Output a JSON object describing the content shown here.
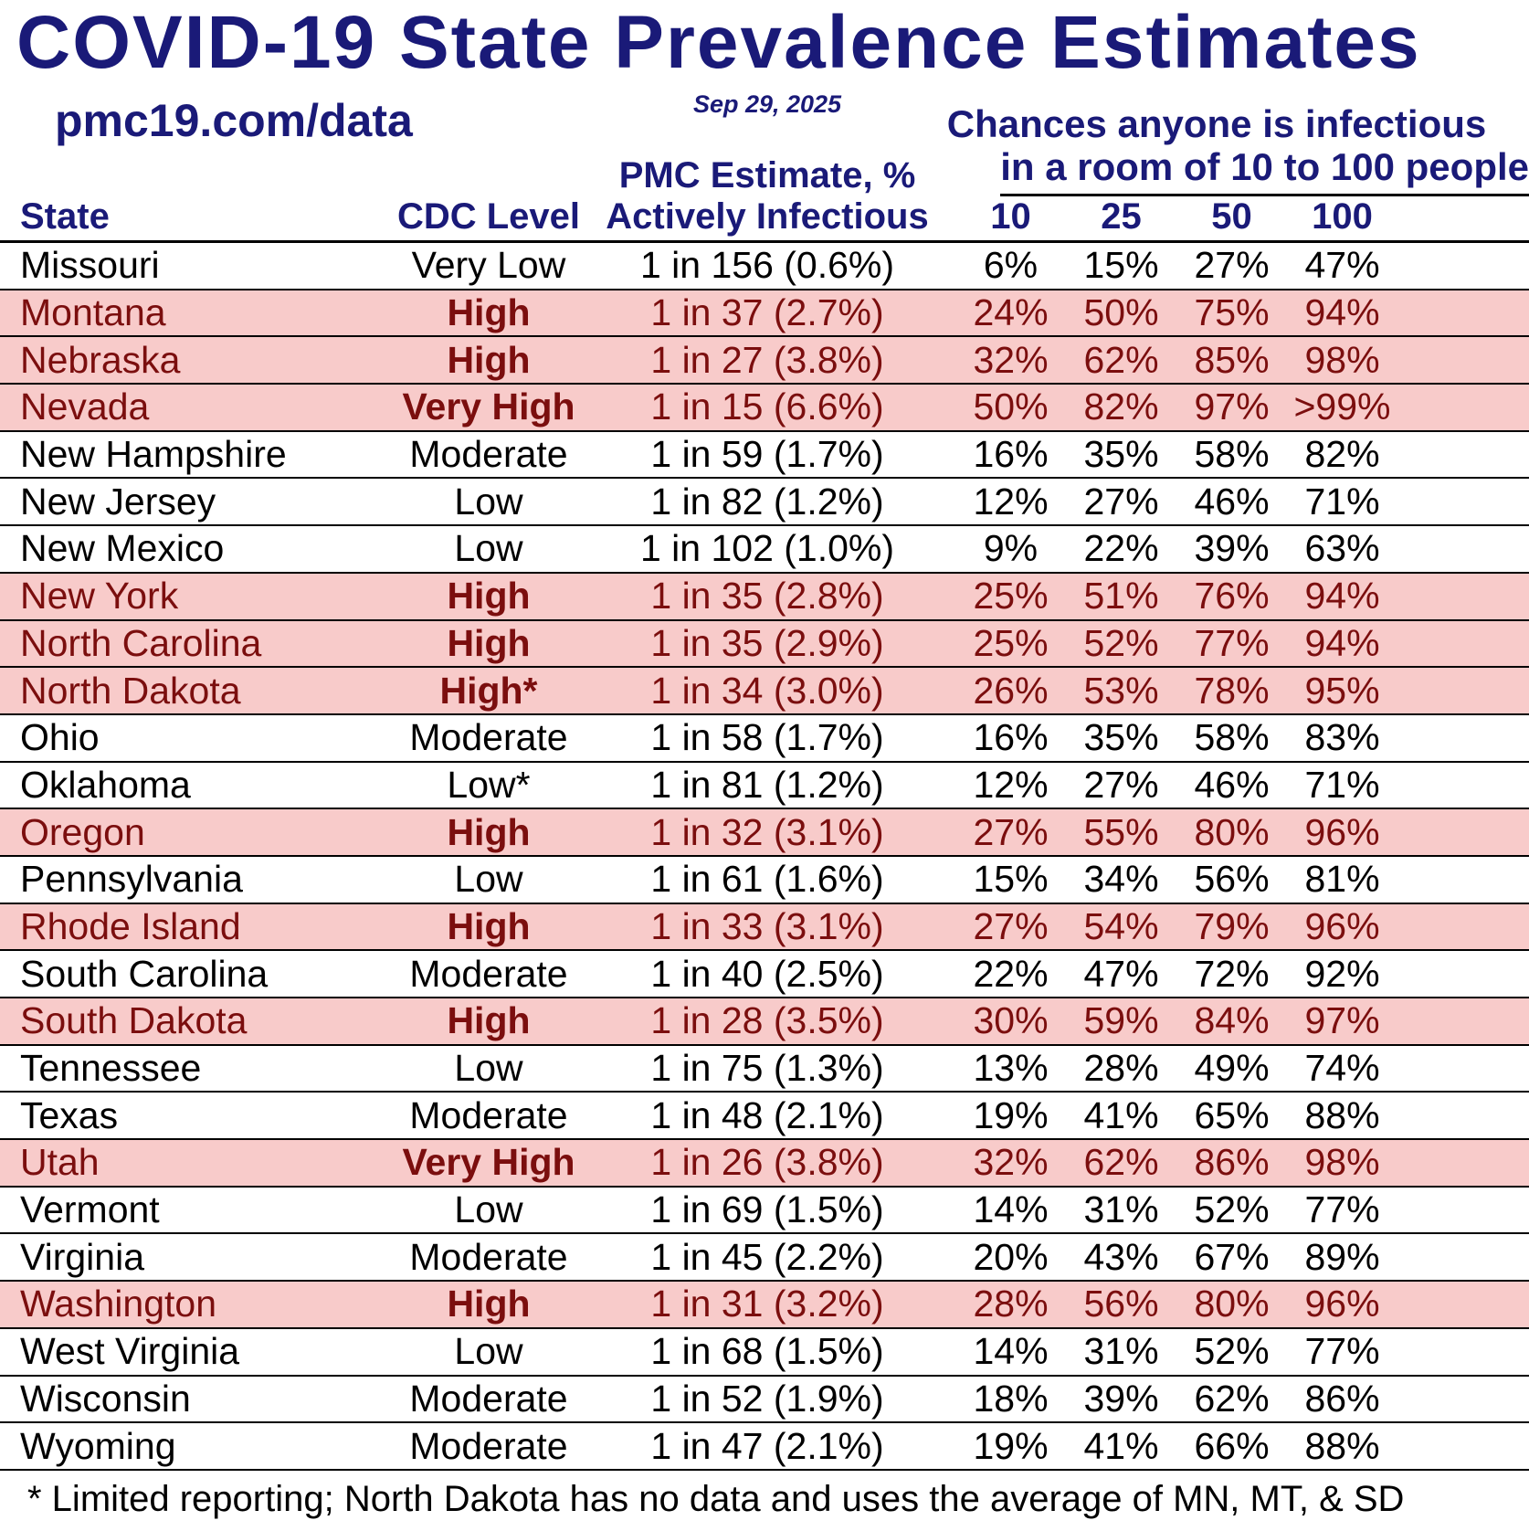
{
  "header": {
    "title": "COVID-19 State Prevalence Estimates",
    "site": "pmc19.com/data",
    "date": "Sep 29, 2025",
    "chances_line1": "Chances anyone is infectious",
    "chances_line2": "in a room of 10 to 100 people",
    "pmc_estimate_label": "PMC Estimate, %",
    "col_state": "State",
    "col_cdc_level": "CDC Level",
    "col_actively_infectious": "Actively Infectious",
    "room_sizes": [
      "10",
      "25",
      "50",
      "100"
    ]
  },
  "colors": {
    "navy": "#1a1a78",
    "dark_red": "#7b0e0e",
    "pink": "#f8cbca"
  },
  "chart_data": {
    "type": "table",
    "title": "COVID-19 State Prevalence Estimates",
    "group_header": "Chances anyone is infectious in a room of 10 to 100 people",
    "columns": [
      "State",
      "CDC Level",
      "PMC Estimate, % Actively Infectious",
      "10",
      "25",
      "50",
      "100"
    ],
    "rows": [
      {
        "state": "Missouri",
        "cdc_level": "Very Low",
        "estimate": "1 in 156 (0.6%)",
        "chances": [
          "6%",
          "15%",
          "27%",
          "47%"
        ],
        "highlight": false
      },
      {
        "state": "Montana",
        "cdc_level": "High",
        "estimate": "1 in 37 (2.7%)",
        "chances": [
          "24%",
          "50%",
          "75%",
          "94%"
        ],
        "highlight": true
      },
      {
        "state": "Nebraska",
        "cdc_level": "High",
        "estimate": "1 in 27 (3.8%)",
        "chances": [
          "32%",
          "62%",
          "85%",
          "98%"
        ],
        "highlight": true
      },
      {
        "state": "Nevada",
        "cdc_level": "Very High",
        "estimate": "1 in 15 (6.6%)",
        "chances": [
          "50%",
          "82%",
          "97%",
          ">99%"
        ],
        "highlight": true
      },
      {
        "state": "New Hampshire",
        "cdc_level": "Moderate",
        "estimate": "1 in 59 (1.7%)",
        "chances": [
          "16%",
          "35%",
          "58%",
          "82%"
        ],
        "highlight": false
      },
      {
        "state": "New Jersey",
        "cdc_level": "Low",
        "estimate": "1 in 82 (1.2%)",
        "chances": [
          "12%",
          "27%",
          "46%",
          "71%"
        ],
        "highlight": false
      },
      {
        "state": "New Mexico",
        "cdc_level": "Low",
        "estimate": "1 in 102 (1.0%)",
        "chances": [
          "9%",
          "22%",
          "39%",
          "63%"
        ],
        "highlight": false
      },
      {
        "state": "New York",
        "cdc_level": "High",
        "estimate": "1 in 35 (2.8%)",
        "chances": [
          "25%",
          "51%",
          "76%",
          "94%"
        ],
        "highlight": true
      },
      {
        "state": "North Carolina",
        "cdc_level": "High",
        "estimate": "1 in 35 (2.9%)",
        "chances": [
          "25%",
          "52%",
          "77%",
          "94%"
        ],
        "highlight": true
      },
      {
        "state": "North Dakota",
        "cdc_level": "High*",
        "estimate": "1 in 34 (3.0%)",
        "chances": [
          "26%",
          "53%",
          "78%",
          "95%"
        ],
        "highlight": true
      },
      {
        "state": "Ohio",
        "cdc_level": "Moderate",
        "estimate": "1 in 58 (1.7%)",
        "chances": [
          "16%",
          "35%",
          "58%",
          "83%"
        ],
        "highlight": false
      },
      {
        "state": "Oklahoma",
        "cdc_level": "Low*",
        "estimate": "1 in 81 (1.2%)",
        "chances": [
          "12%",
          "27%",
          "46%",
          "71%"
        ],
        "highlight": false
      },
      {
        "state": "Oregon",
        "cdc_level": "High",
        "estimate": "1 in 32 (3.1%)",
        "chances": [
          "27%",
          "55%",
          "80%",
          "96%"
        ],
        "highlight": true
      },
      {
        "state": "Pennsylvania",
        "cdc_level": "Low",
        "estimate": "1 in 61 (1.6%)",
        "chances": [
          "15%",
          "34%",
          "56%",
          "81%"
        ],
        "highlight": false
      },
      {
        "state": "Rhode Island",
        "cdc_level": "High",
        "estimate": "1 in 33 (3.1%)",
        "chances": [
          "27%",
          "54%",
          "79%",
          "96%"
        ],
        "highlight": true
      },
      {
        "state": "South Carolina",
        "cdc_level": "Moderate",
        "estimate": "1 in 40 (2.5%)",
        "chances": [
          "22%",
          "47%",
          "72%",
          "92%"
        ],
        "highlight": false
      },
      {
        "state": "South Dakota",
        "cdc_level": "High",
        "estimate": "1 in 28 (3.5%)",
        "chances": [
          "30%",
          "59%",
          "84%",
          "97%"
        ],
        "highlight": true
      },
      {
        "state": "Tennessee",
        "cdc_level": "Low",
        "estimate": "1 in 75 (1.3%)",
        "chances": [
          "13%",
          "28%",
          "49%",
          "74%"
        ],
        "highlight": false
      },
      {
        "state": "Texas",
        "cdc_level": "Moderate",
        "estimate": "1 in 48 (2.1%)",
        "chances": [
          "19%",
          "41%",
          "65%",
          "88%"
        ],
        "highlight": false
      },
      {
        "state": "Utah",
        "cdc_level": "Very High",
        "estimate": "1 in 26 (3.8%)",
        "chances": [
          "32%",
          "62%",
          "86%",
          "98%"
        ],
        "highlight": true
      },
      {
        "state": "Vermont",
        "cdc_level": "Low",
        "estimate": "1 in 69 (1.5%)",
        "chances": [
          "14%",
          "31%",
          "52%",
          "77%"
        ],
        "highlight": false
      },
      {
        "state": "Virginia",
        "cdc_level": "Moderate",
        "estimate": "1 in 45 (2.2%)",
        "chances": [
          "20%",
          "43%",
          "67%",
          "89%"
        ],
        "highlight": false
      },
      {
        "state": "Washington",
        "cdc_level": "High",
        "estimate": "1 in 31 (3.2%)",
        "chances": [
          "28%",
          "56%",
          "80%",
          "96%"
        ],
        "highlight": true
      },
      {
        "state": "West Virginia",
        "cdc_level": "Low",
        "estimate": "1 in 68 (1.5%)",
        "chances": [
          "14%",
          "31%",
          "52%",
          "77%"
        ],
        "highlight": false
      },
      {
        "state": "Wisconsin",
        "cdc_level": "Moderate",
        "estimate": "1 in 52 (1.9%)",
        "chances": [
          "18%",
          "39%",
          "62%",
          "86%"
        ],
        "highlight": false
      },
      {
        "state": "Wyoming",
        "cdc_level": "Moderate",
        "estimate": "1 in 47 (2.1%)",
        "chances": [
          "19%",
          "41%",
          "66%",
          "88%"
        ],
        "highlight": false
      }
    ]
  },
  "footnote": "* Limited reporting; North Dakota has no data and uses the average of MN, MT, & SD"
}
